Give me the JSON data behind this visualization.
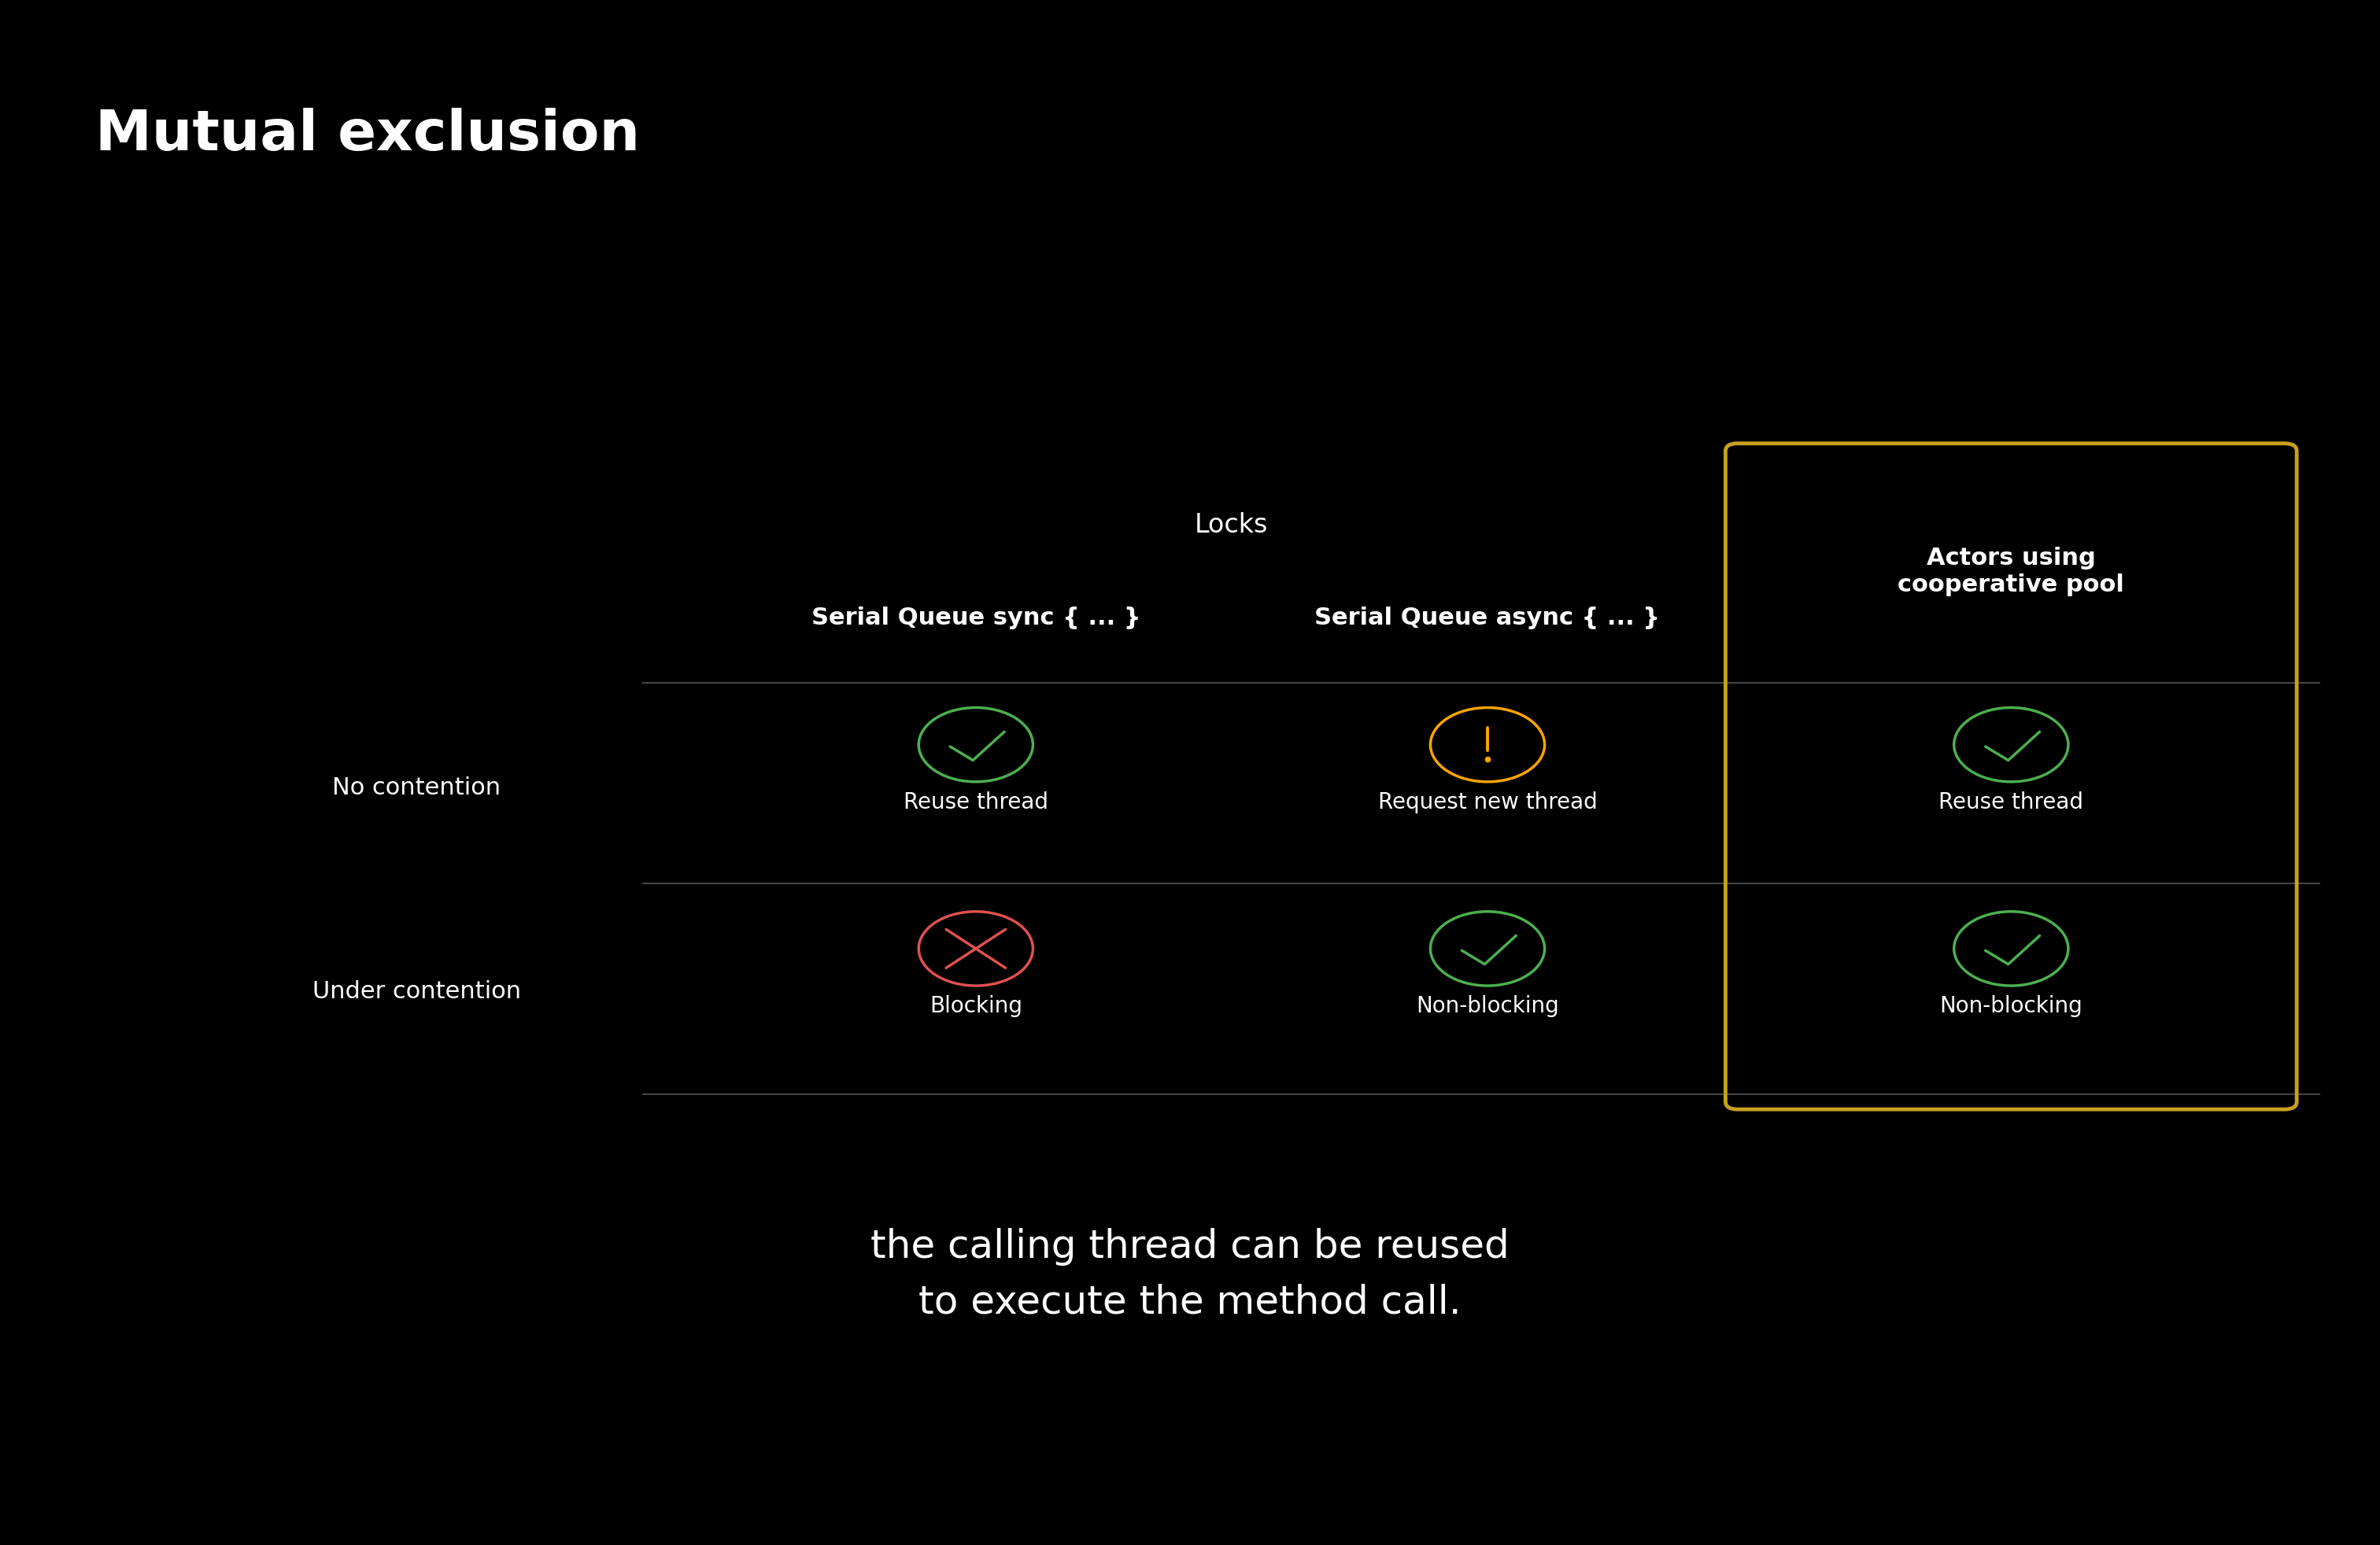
{
  "title": "Mutual exclusion",
  "background_color": "#000000",
  "text_color": "#ffffff",
  "title_fontsize": 52,
  "cell_fontsize": 22,
  "footer_fontsize": 36,
  "col_headers_locks": "Locks",
  "col_header1": "Serial Queue sync { ... }",
  "col_header2": "Serial Queue async { ... }",
  "col_header3": "Actors using\ncooperative pool",
  "row_labels": [
    "No contention",
    "Under contention"
  ],
  "row_data": [
    [
      {
        "icon": "check_green",
        "text": "Reuse thread"
      },
      {
        "icon": "warn_yellow",
        "text": "Request new thread"
      },
      {
        "icon": "check_green",
        "text": "Reuse thread"
      }
    ],
    [
      {
        "icon": "x_red",
        "text": "Blocking"
      },
      {
        "icon": "check_green",
        "text": "Non-blocking"
      },
      {
        "icon": "check_green",
        "text": "Non-blocking"
      }
    ]
  ],
  "highlight_color": "#c8a020",
  "line_color": "#555555",
  "footer_text": "the calling thread can be reused\nto execute the method call.",
  "check_green": "#4caf50",
  "warn_yellow": "#ffa500",
  "x_red": "#e05050"
}
